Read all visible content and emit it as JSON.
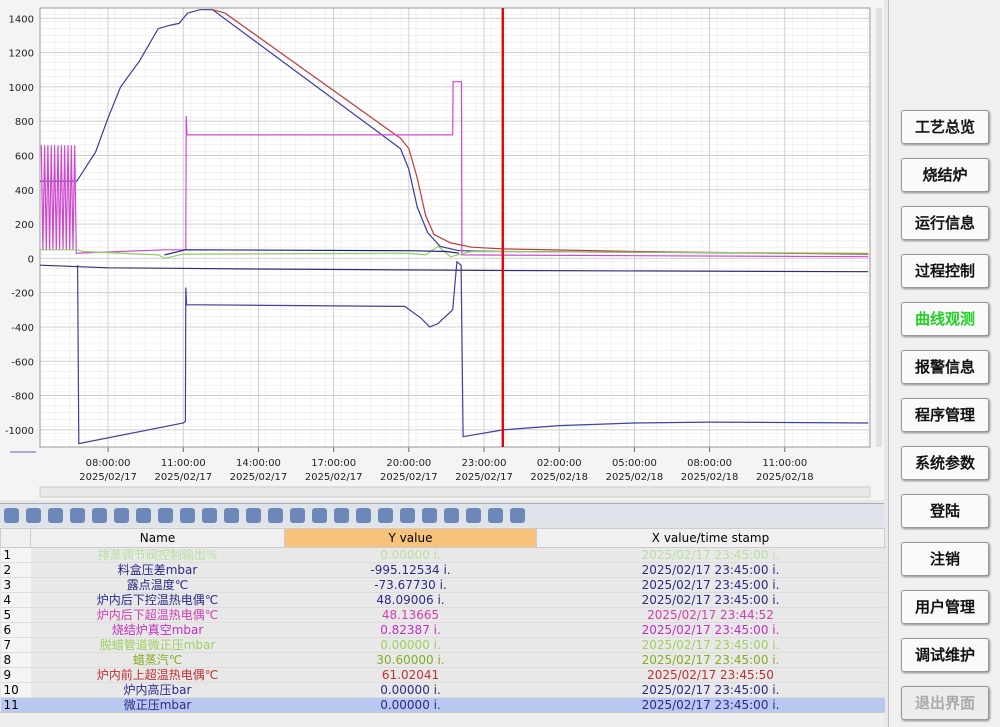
{
  "chart_data": {
    "type": "line",
    "ylim": [
      -1100,
      1460
    ],
    "yticks": [
      -1000,
      -800,
      -600,
      -400,
      -200,
      0,
      200,
      400,
      600,
      800,
      1000,
      1200,
      1400
    ],
    "xlim": [
      "2025/02/17 05:17",
      "2025/02/18 14:24"
    ],
    "xticks": [
      {
        "value": "2025/02/17 08:00",
        "label": [
          "08:00:00",
          "2025/02/17"
        ]
      },
      {
        "value": "2025/02/17 11:00",
        "label": [
          "11:00:00",
          "2025/02/17"
        ]
      },
      {
        "value": "2025/02/17 14:00",
        "label": [
          "14:00:00",
          "2025/02/17"
        ]
      },
      {
        "value": "2025/02/17 17:00",
        "label": [
          "17:00:00",
          "2025/02/17"
        ]
      },
      {
        "value": "2025/02/17 20:00",
        "label": [
          "20:00:00",
          "2025/02/17"
        ]
      },
      {
        "value": "2025/02/17 23:00",
        "label": [
          "23:00:00",
          "2025/02/17"
        ]
      },
      {
        "value": "2025/02/18 02:00",
        "label": [
          "02:00:00",
          "2025/02/18"
        ]
      },
      {
        "value": "2025/02/18 05:00",
        "label": [
          "05:00:00",
          "2025/02/18"
        ]
      },
      {
        "value": "2025/02/18 08:00",
        "label": [
          "08:00:00",
          "2025/02/18"
        ]
      },
      {
        "value": "2025/02/18 11:00",
        "label": [
          "11:00:00",
          "2025/02/18"
        ]
      }
    ],
    "grid": true,
    "cursor": "2025/02/17 23:45",
    "cursor_color": "#d01010",
    "series": [
      {
        "color": "#3a3aa0",
        "x": [
          "2025/02/17 05:17",
          "2025/02/17 06:45",
          "2025/02/17 07:30",
          "2025/02/17 08:00",
          "2025/02/17 08:30",
          "2025/02/17 09:15",
          "2025/02/17 10:00",
          "2025/02/17 10:30",
          "2025/02/17 10:50",
          "2025/02/17 11:10",
          "2025/02/17 11:40",
          "2025/02/17 12:10",
          "2025/02/17 19:40",
          "2025/02/17 20:00",
          "2025/02/17 20:20",
          "2025/02/17 20:45",
          "2025/02/17 21:15",
          "2025/02/17 22:00",
          "2025/02/17 23:45",
          "2025/02/18 14:20"
        ],
        "values": [
          450,
          450,
          620,
          820,
          1000,
          1150,
          1340,
          1360,
          1370,
          1430,
          1450,
          1450,
          640,
          520,
          300,
          150,
          70,
          45,
          40,
          28
        ]
      },
      {
        "color": "#c03a3a",
        "x": [
          "2025/02/17 12:10",
          "2025/02/17 12:40",
          "2025/02/17 19:40",
          "2025/02/17 20:00",
          "2025/02/17 20:20",
          "2025/02/17 20:40",
          "2025/02/17 21:00",
          "2025/02/17 21:40",
          "2025/02/17 22:30",
          "2025/02/17 23:45",
          "2025/02/18 05:00",
          "2025/02/18 14:20"
        ],
        "values": [
          1450,
          1430,
          700,
          640,
          470,
          250,
          140,
          90,
          65,
          55,
          40,
          25
        ]
      },
      {
        "color": "#d048d0",
        "x": [
          "2025/02/17 05:20",
          "2025/02/17 05:24",
          "2025/02/17 05:28",
          "2025/02/17 05:32",
          "2025/02/17 05:36",
          "2025/02/17 05:40",
          "2025/02/17 05:44",
          "2025/02/17 05:48",
          "2025/02/17 05:52",
          "2025/02/17 05:56",
          "2025/02/17 06:00",
          "2025/02/17 06:04",
          "2025/02/17 06:08",
          "2025/02/17 06:12",
          "2025/02/17 06:16",
          "2025/02/17 06:20",
          "2025/02/17 06:24",
          "2025/02/17 06:28",
          "2025/02/17 06:32",
          "2025/02/17 06:36",
          "2025/02/17 06:40",
          "2025/02/17 06:44",
          "2025/02/17 10:16",
          "2025/02/17 11:06",
          "2025/02/17 11:07",
          "2025/02/17 11:09",
          "2025/02/17 21:45",
          "2025/02/17 21:46",
          "2025/02/17 22:06",
          "2025/02/17 22:07",
          "2025/02/18 14:20"
        ],
        "values": [
          660,
          50,
          660,
          50,
          660,
          50,
          660,
          50,
          660,
          50,
          660,
          50,
          660,
          50,
          660,
          50,
          660,
          50,
          660,
          50,
          660,
          30,
          50,
          50,
          830,
          720,
          720,
          1030,
          1030,
          20,
          10
        ]
      },
      {
        "color": "#4040a0",
        "x": [
          "2025/02/17 06:47",
          "2025/02/17 06:50",
          "2025/02/17 11:00",
          "2025/02/17 11:05",
          "2025/02/17 11:06",
          "2025/02/17 11:08",
          "2025/02/17 19:50",
          "2025/02/17 20:30",
          "2025/02/17 20:50",
          "2025/02/17 21:10",
          "2025/02/17 21:45",
          "2025/02/17 21:55",
          "2025/02/17 22:05",
          "2025/02/17 22:10",
          "2025/02/17 23:45",
          "2025/02/18 02:00",
          "2025/02/18 05:00",
          "2025/02/18 08:00",
          "2025/02/18 14:20"
        ],
        "values": [
          -40,
          -1080,
          -960,
          -950,
          -170,
          -270,
          -280,
          -350,
          -400,
          -380,
          -300,
          -20,
          -40,
          -1040,
          -1000,
          -975,
          -960,
          -955,
          -960
        ]
      },
      {
        "color": "#303070",
        "x": [
          "2025/02/17 05:17",
          "2025/02/17 08:00",
          "2025/02/17 14:00",
          "2025/02/17 23:00",
          "2025/02/18 14:20"
        ],
        "values": [
          -40,
          -55,
          -62,
          -70,
          -78
        ]
      },
      {
        "color": "#90d060",
        "x": [
          "2025/02/17 05:17",
          "2025/02/17 06:45",
          "2025/02/17 07:00",
          "2025/02/17 10:00",
          "2025/02/17 10:15",
          "2025/02/17 11:00",
          "2025/02/17 20:00",
          "2025/02/17 20:40",
          "2025/02/17 21:10",
          "2025/02/17 21:40",
          "2025/02/17 22:30",
          "2025/02/18 14:20"
        ],
        "values": [
          50,
          50,
          40,
          20,
          0,
          25,
          30,
          20,
          70,
          10,
          40,
          30
        ]
      },
      {
        "color": "#202080",
        "x": [
          "2025/02/17 10:15",
          "2025/02/17 11:05",
          "2025/02/17 20:00",
          "2025/02/17 21:30",
          "2025/02/17 22:00"
        ],
        "values": [
          20,
          50,
          45,
          40,
          30
        ]
      }
    ]
  },
  "table": {
    "columns": [
      "Name",
      "Y value",
      "X value/time stamp"
    ],
    "rows": [
      [
        "1",
        "排蒸调节阀控制输出%",
        "0.00000 i.",
        "2025/02/17 23:45:00 i."
      ],
      [
        "2",
        "料盒压差mbar",
        "-995.12534 i.",
        "2025/02/17 23:45:00 i."
      ],
      [
        "3",
        "露点温度℃",
        "-73.67730 i.",
        "2025/02/17 23:45:00 i."
      ],
      [
        "4",
        "炉内后下控温热电偶℃",
        "48.09006 i.",
        "2025/02/17 23:45:00 i."
      ],
      [
        "5",
        "炉内后下超温热电偶℃",
        "48.13665",
        "2025/02/17 23:44:52"
      ],
      [
        "6",
        "烧结炉真空mbar",
        "0.82387 i.",
        "2025/02/17 23:45:00 i."
      ],
      [
        "7",
        "脱蜡管道微正压mbar",
        "0.00000 i.",
        "2025/02/17 23:45:00 i."
      ],
      [
        "8",
        "蜡蒸汽℃",
        "30.60000 i.",
        "2025/02/17 23:45:00 i."
      ],
      [
        "9",
        "炉内前上超温热电偶℃",
        "61.02041",
        "2025/02/17 23:45:50"
      ],
      [
        "10",
        "炉内高压bar",
        "0.00000 i.",
        "2025/02/17 23:45:00 i."
      ],
      [
        "11",
        "微正压mbar",
        "0.00000 i.",
        "2025/02/17 23:45:00 i."
      ]
    ],
    "colors": [
      "#b8e0a0",
      "#2a2a8a",
      "#2a2a8a",
      "#2a2a8a",
      "#d040b0",
      "#c030c0",
      "#a0d060",
      "#80b020",
      "#c03030",
      "#2a2a8a",
      "#2a2a8a"
    ]
  },
  "menu": [
    "工艺总览",
    "烧结炉",
    "运行信息",
    "过程控制",
    "曲线观测",
    "报警信息",
    "程序管理",
    "系统参数",
    "登陆",
    "注销",
    "用户管理",
    "调试维护",
    "退出界面"
  ]
}
